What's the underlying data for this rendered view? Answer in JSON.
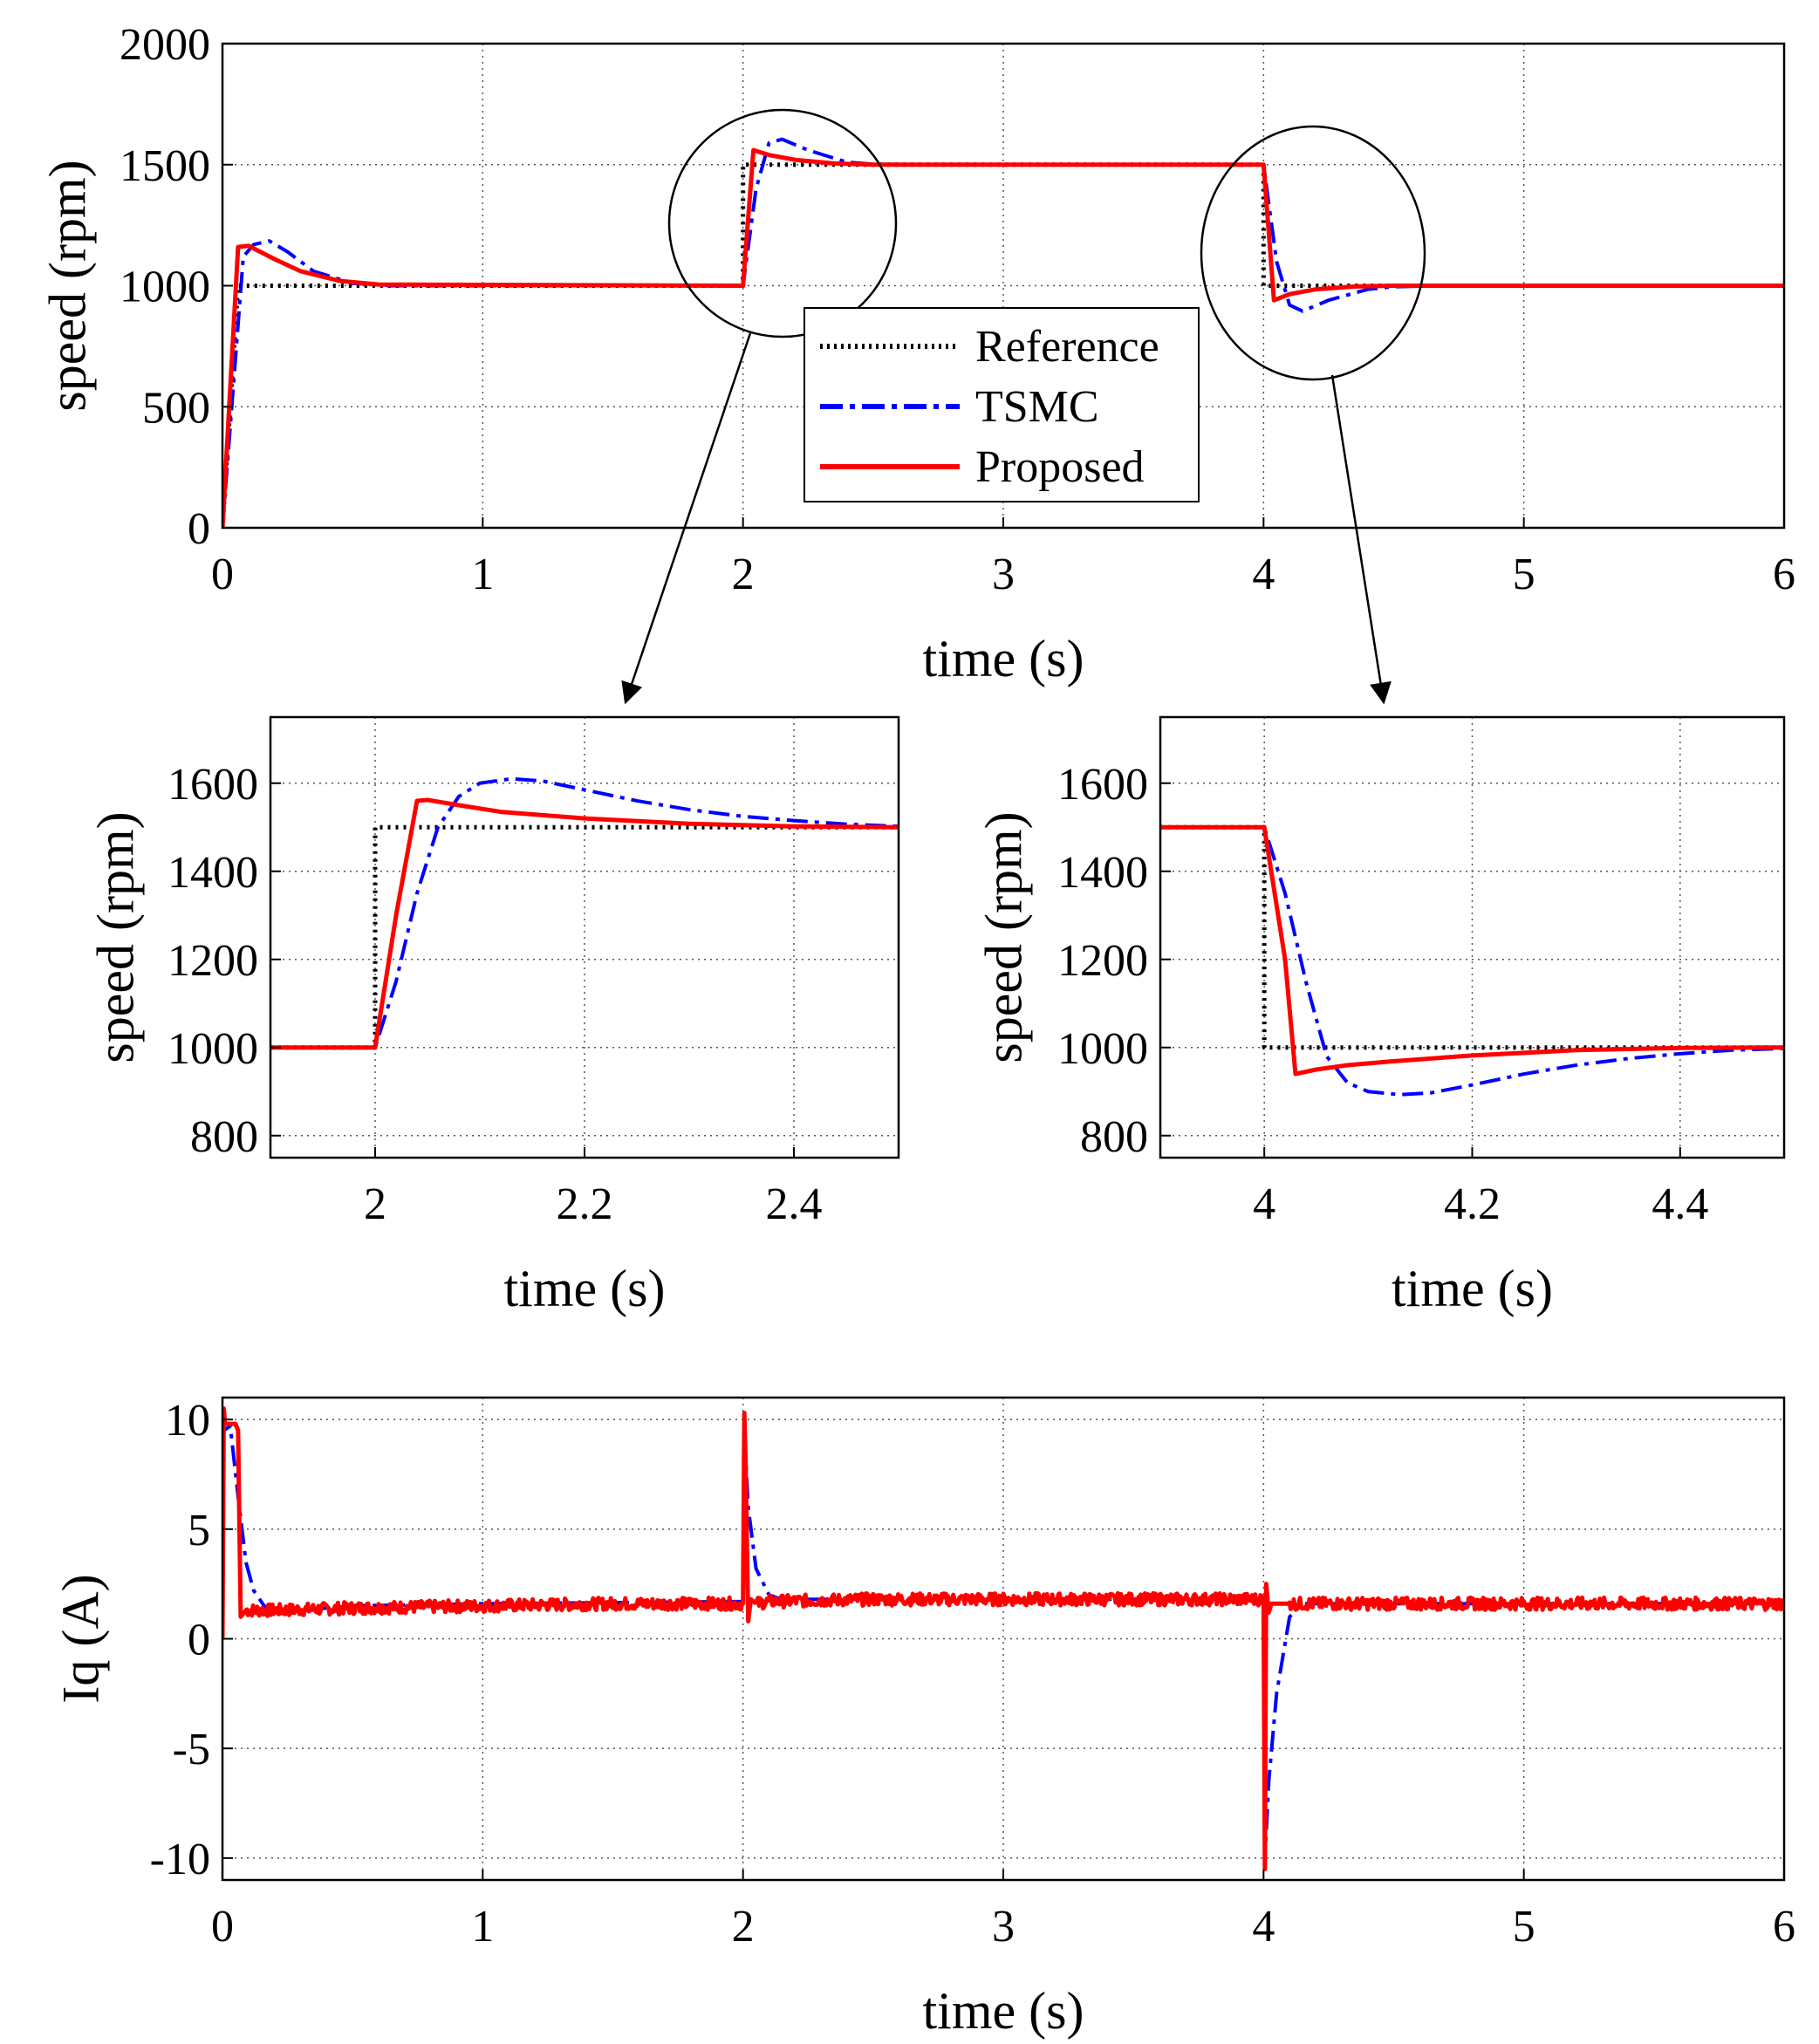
{
  "colors": {
    "reference": "#000000",
    "tsmc": "#0000ff",
    "proposed": "#ff0000",
    "grid": "#555555"
  },
  "legend": {
    "entries": [
      {
        "key": "reference",
        "label": "Reference",
        "style": "dotted"
      },
      {
        "key": "tsmc",
        "label": "TSMC",
        "style": "dashdot"
      },
      {
        "key": "proposed",
        "label": "Proposed",
        "style": "solid"
      }
    ]
  },
  "chart_data": [
    {
      "id": "speed-main",
      "type": "line",
      "xlabel": "time (s)",
      "ylabel": "speed (rpm)",
      "xlim": [
        0,
        6
      ],
      "ylim": [
        0,
        2000
      ],
      "xticks": [
        0,
        1,
        2,
        3,
        4,
        5,
        6
      ],
      "xtick_labels": [
        "0",
        "1",
        "2",
        "3",
        "4",
        "5",
        "6"
      ],
      "yticks": [
        0,
        500,
        1000,
        1500,
        2000
      ],
      "ytick_labels": [
        "0",
        "500",
        "1000",
        "1500",
        "2000"
      ],
      "grid": true,
      "legend": "center",
      "series": [
        {
          "name": "Reference",
          "key": "reference",
          "x": [
            0,
            0.06,
            0.06,
            2.0,
            2.0,
            4.0,
            4.0,
            6.0
          ],
          "y": [
            0,
            1000,
            1000,
            1000,
            1500,
            1500,
            1000,
            1000
          ]
        },
        {
          "name": "TSMC",
          "key": "tsmc",
          "x": [
            0,
            0.08,
            0.12,
            0.18,
            0.25,
            0.35,
            0.5,
            0.65,
            2.0,
            2.05,
            2.1,
            2.15,
            2.25,
            2.4,
            2.5,
            2.7,
            4.0,
            4.05,
            4.1,
            4.15,
            4.25,
            4.4,
            4.5,
            4.7,
            6.0
          ],
          "y": [
            0,
            1120,
            1170,
            1185,
            1140,
            1060,
            1010,
            1000,
            1000,
            1400,
            1590,
            1605,
            1560,
            1510,
            1502,
            1500,
            1500,
            1100,
            920,
            895,
            940,
            985,
            996,
            1000,
            1000
          ]
        },
        {
          "name": "Proposed",
          "key": "proposed",
          "x": [
            0,
            0.06,
            0.1,
            0.2,
            0.3,
            0.45,
            0.6,
            2.0,
            2.04,
            2.1,
            2.2,
            2.35,
            2.5,
            4.0,
            4.04,
            4.1,
            4.2,
            4.35,
            4.5,
            6.0
          ],
          "y": [
            0,
            1160,
            1165,
            1110,
            1060,
            1020,
            1005,
            1000,
            1560,
            1540,
            1520,
            1505,
            1500,
            1500,
            940,
            965,
            985,
            997,
            1000,
            1000
          ]
        }
      ]
    },
    {
      "id": "zoom-step-up",
      "type": "line",
      "xlabel": "time (s)",
      "ylabel": "speed (rpm)",
      "xlim": [
        1.9,
        2.5
      ],
      "ylim": [
        750,
        1750
      ],
      "xticks": [
        2,
        2.2,
        2.4
      ],
      "xtick_labels": [
        "2",
        "2.2",
        "2.4"
      ],
      "yticks": [
        800,
        1000,
        1200,
        1400,
        1600
      ],
      "ytick_labels": [
        "800",
        "1000",
        "1200",
        "1400",
        "1600"
      ],
      "grid": true,
      "series": [
        {
          "name": "Reference",
          "key": "reference",
          "x": [
            1.9,
            2.0,
            2.0,
            2.5
          ],
          "y": [
            1000,
            1000,
            1500,
            1500
          ]
        },
        {
          "name": "TSMC",
          "key": "tsmc",
          "x": [
            1.9,
            2.0,
            2.02,
            2.04,
            2.06,
            2.08,
            2.1,
            2.13,
            2.16,
            2.2,
            2.25,
            2.3,
            2.35,
            2.4,
            2.45,
            2.5
          ],
          "y": [
            1000,
            1000,
            1150,
            1350,
            1500,
            1570,
            1600,
            1610,
            1605,
            1585,
            1560,
            1540,
            1525,
            1515,
            1507,
            1502
          ]
        },
        {
          "name": "Proposed",
          "key": "proposed",
          "x": [
            1.9,
            2.0,
            2.02,
            2.04,
            2.05,
            2.08,
            2.12,
            2.2,
            2.3,
            2.4,
            2.5
          ],
          "y": [
            1000,
            1000,
            1300,
            1560,
            1562,
            1550,
            1535,
            1520,
            1508,
            1502,
            1500
          ]
        }
      ]
    },
    {
      "id": "zoom-step-down",
      "type": "line",
      "xlabel": "time (s)",
      "ylabel": "speed (rpm)",
      "xlim": [
        3.9,
        4.5
      ],
      "ylim": [
        750,
        1750
      ],
      "xticks": [
        4,
        4.2,
        4.4
      ],
      "xtick_labels": [
        "4",
        "4.2",
        "4.4"
      ],
      "yticks": [
        800,
        1000,
        1200,
        1400,
        1600
      ],
      "ytick_labels": [
        "800",
        "1000",
        "1200",
        "1400",
        "1600"
      ],
      "grid": true,
      "series": [
        {
          "name": "Reference",
          "key": "reference",
          "x": [
            3.9,
            4.0,
            4.0,
            4.5
          ],
          "y": [
            1500,
            1500,
            1000,
            1000
          ]
        },
        {
          "name": "TSMC",
          "key": "tsmc",
          "x": [
            3.9,
            4.0,
            4.02,
            4.04,
            4.06,
            4.08,
            4.1,
            4.13,
            4.16,
            4.2,
            4.25,
            4.3,
            4.35,
            4.4,
            4.45,
            4.5
          ],
          "y": [
            1500,
            1500,
            1350,
            1150,
            980,
            920,
            900,
            893,
            897,
            915,
            940,
            960,
            975,
            986,
            994,
            998
          ]
        },
        {
          "name": "Proposed",
          "key": "proposed",
          "x": [
            3.9,
            4.0,
            4.02,
            4.03,
            4.05,
            4.08,
            4.12,
            4.2,
            4.3,
            4.4,
            4.5
          ],
          "y": [
            1500,
            1500,
            1200,
            940,
            950,
            960,
            968,
            982,
            994,
            999,
            1000
          ]
        }
      ]
    },
    {
      "id": "current-iq",
      "type": "line",
      "xlabel": "time (s)",
      "ylabel": "Iq (A)",
      "xlim": [
        0,
        6
      ],
      "ylim": [
        -11,
        11
      ],
      "xticks": [
        0,
        1,
        2,
        3,
        4,
        5,
        6
      ],
      "xtick_labels": [
        "0",
        "1",
        "2",
        "3",
        "4",
        "5",
        "6"
      ],
      "yticks": [
        10,
        5,
        0,
        -5,
        -10
      ],
      "ytick_labels": [
        "10",
        "5",
        "0",
        "-5",
        "-10"
      ],
      "grid": true,
      "series": [
        {
          "name": "TSMC",
          "key": "tsmc",
          "x": [
            0,
            0.005,
            0.03,
            0.06,
            0.09,
            0.12,
            0.16,
            0.22,
            0.3,
            0.5,
            1.0,
            2.0,
            2.005,
            2.02,
            2.05,
            2.1,
            2.15,
            2.5,
            3.0,
            4.0,
            4.005,
            4.02,
            4.05,
            4.1,
            4.15,
            4.5,
            6.0
          ],
          "y": [
            0,
            9.5,
            9.7,
            6.5,
            3.5,
            2.2,
            1.5,
            1.3,
            1.3,
            1.5,
            1.6,
            1.7,
            9.5,
            6.0,
            3.2,
            2.0,
            1.8,
            1.8,
            1.8,
            1.8,
            -10.0,
            -6.5,
            -2.5,
            1.0,
            1.6,
            1.6,
            1.6
          ]
        },
        {
          "name": "Proposed",
          "key": "proposed",
          "x": [
            0,
            0.005,
            0.01,
            0.05,
            0.06,
            0.07,
            0.09,
            0.2,
            0.5,
            1.0,
            1.5,
            2.0,
            2.005,
            2.01,
            2.02,
            2.03,
            2.05,
            2.1,
            2.5,
            3.0,
            3.5,
            4.0,
            4.005,
            4.01,
            4.02,
            4.03,
            4.05,
            4.1,
            4.5,
            5.0,
            6.0
          ],
          "y": [
            0,
            10.5,
            9.8,
            9.8,
            9.5,
            1.0,
            1.3,
            1.3,
            1.4,
            1.5,
            1.6,
            1.6,
            10.3,
            8.0,
            0.8,
            1.8,
            1.6,
            1.7,
            1.8,
            1.8,
            1.8,
            1.8,
            -10.5,
            2.5,
            1.2,
            1.6,
            1.6,
            1.6,
            1.6,
            1.6,
            1.6
          ],
          "noise": 0.28
        }
      ]
    }
  ]
}
